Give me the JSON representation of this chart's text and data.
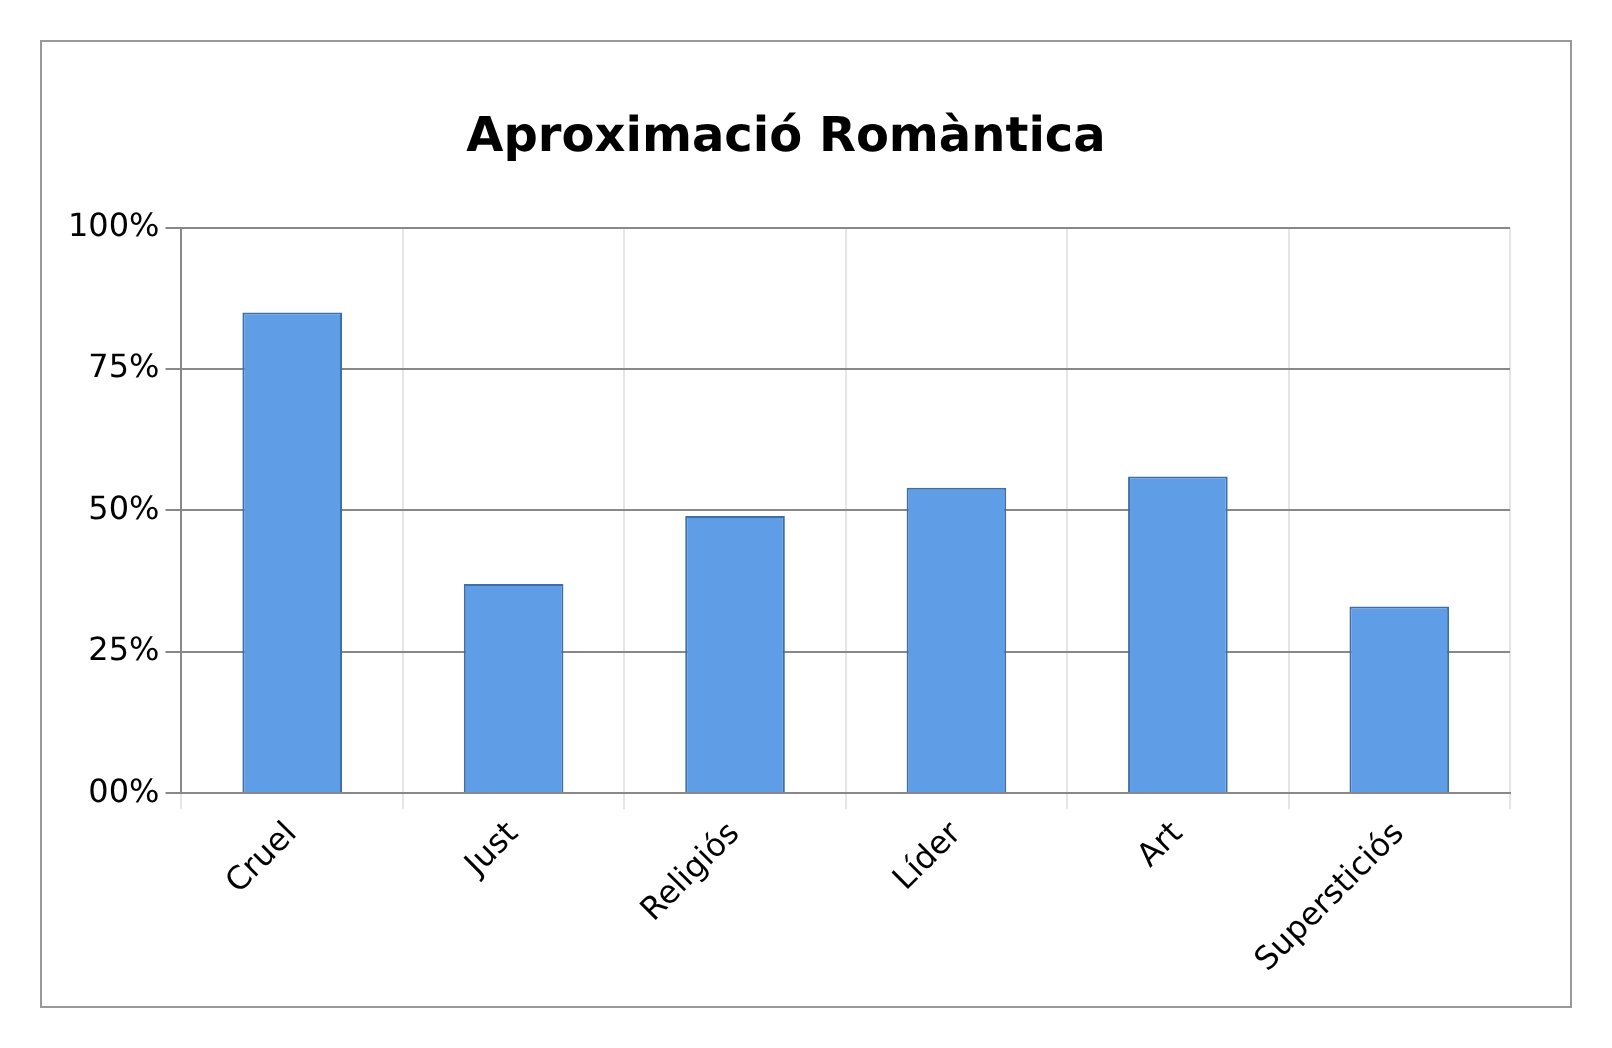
{
  "chart_data": {
    "type": "bar",
    "title": "Aproximació Romàntica",
    "categories": [
      "Cruel",
      "Just",
      "Religiós",
      "Líder",
      "Art",
      "Supersticiós"
    ],
    "values": [
      85,
      37,
      49,
      54,
      56,
      33
    ],
    "color": "#5f9ee6",
    "ylim": [
      0,
      100
    ],
    "yticks": [
      {
        "value": 0,
        "label": "00%"
      },
      {
        "value": 25,
        "label": "25%"
      },
      {
        "value": 50,
        "label": "50%"
      },
      {
        "value": 75,
        "label": "75%"
      },
      {
        "value": 100,
        "label": "100%"
      }
    ],
    "grid": true,
    "legend": false
  }
}
